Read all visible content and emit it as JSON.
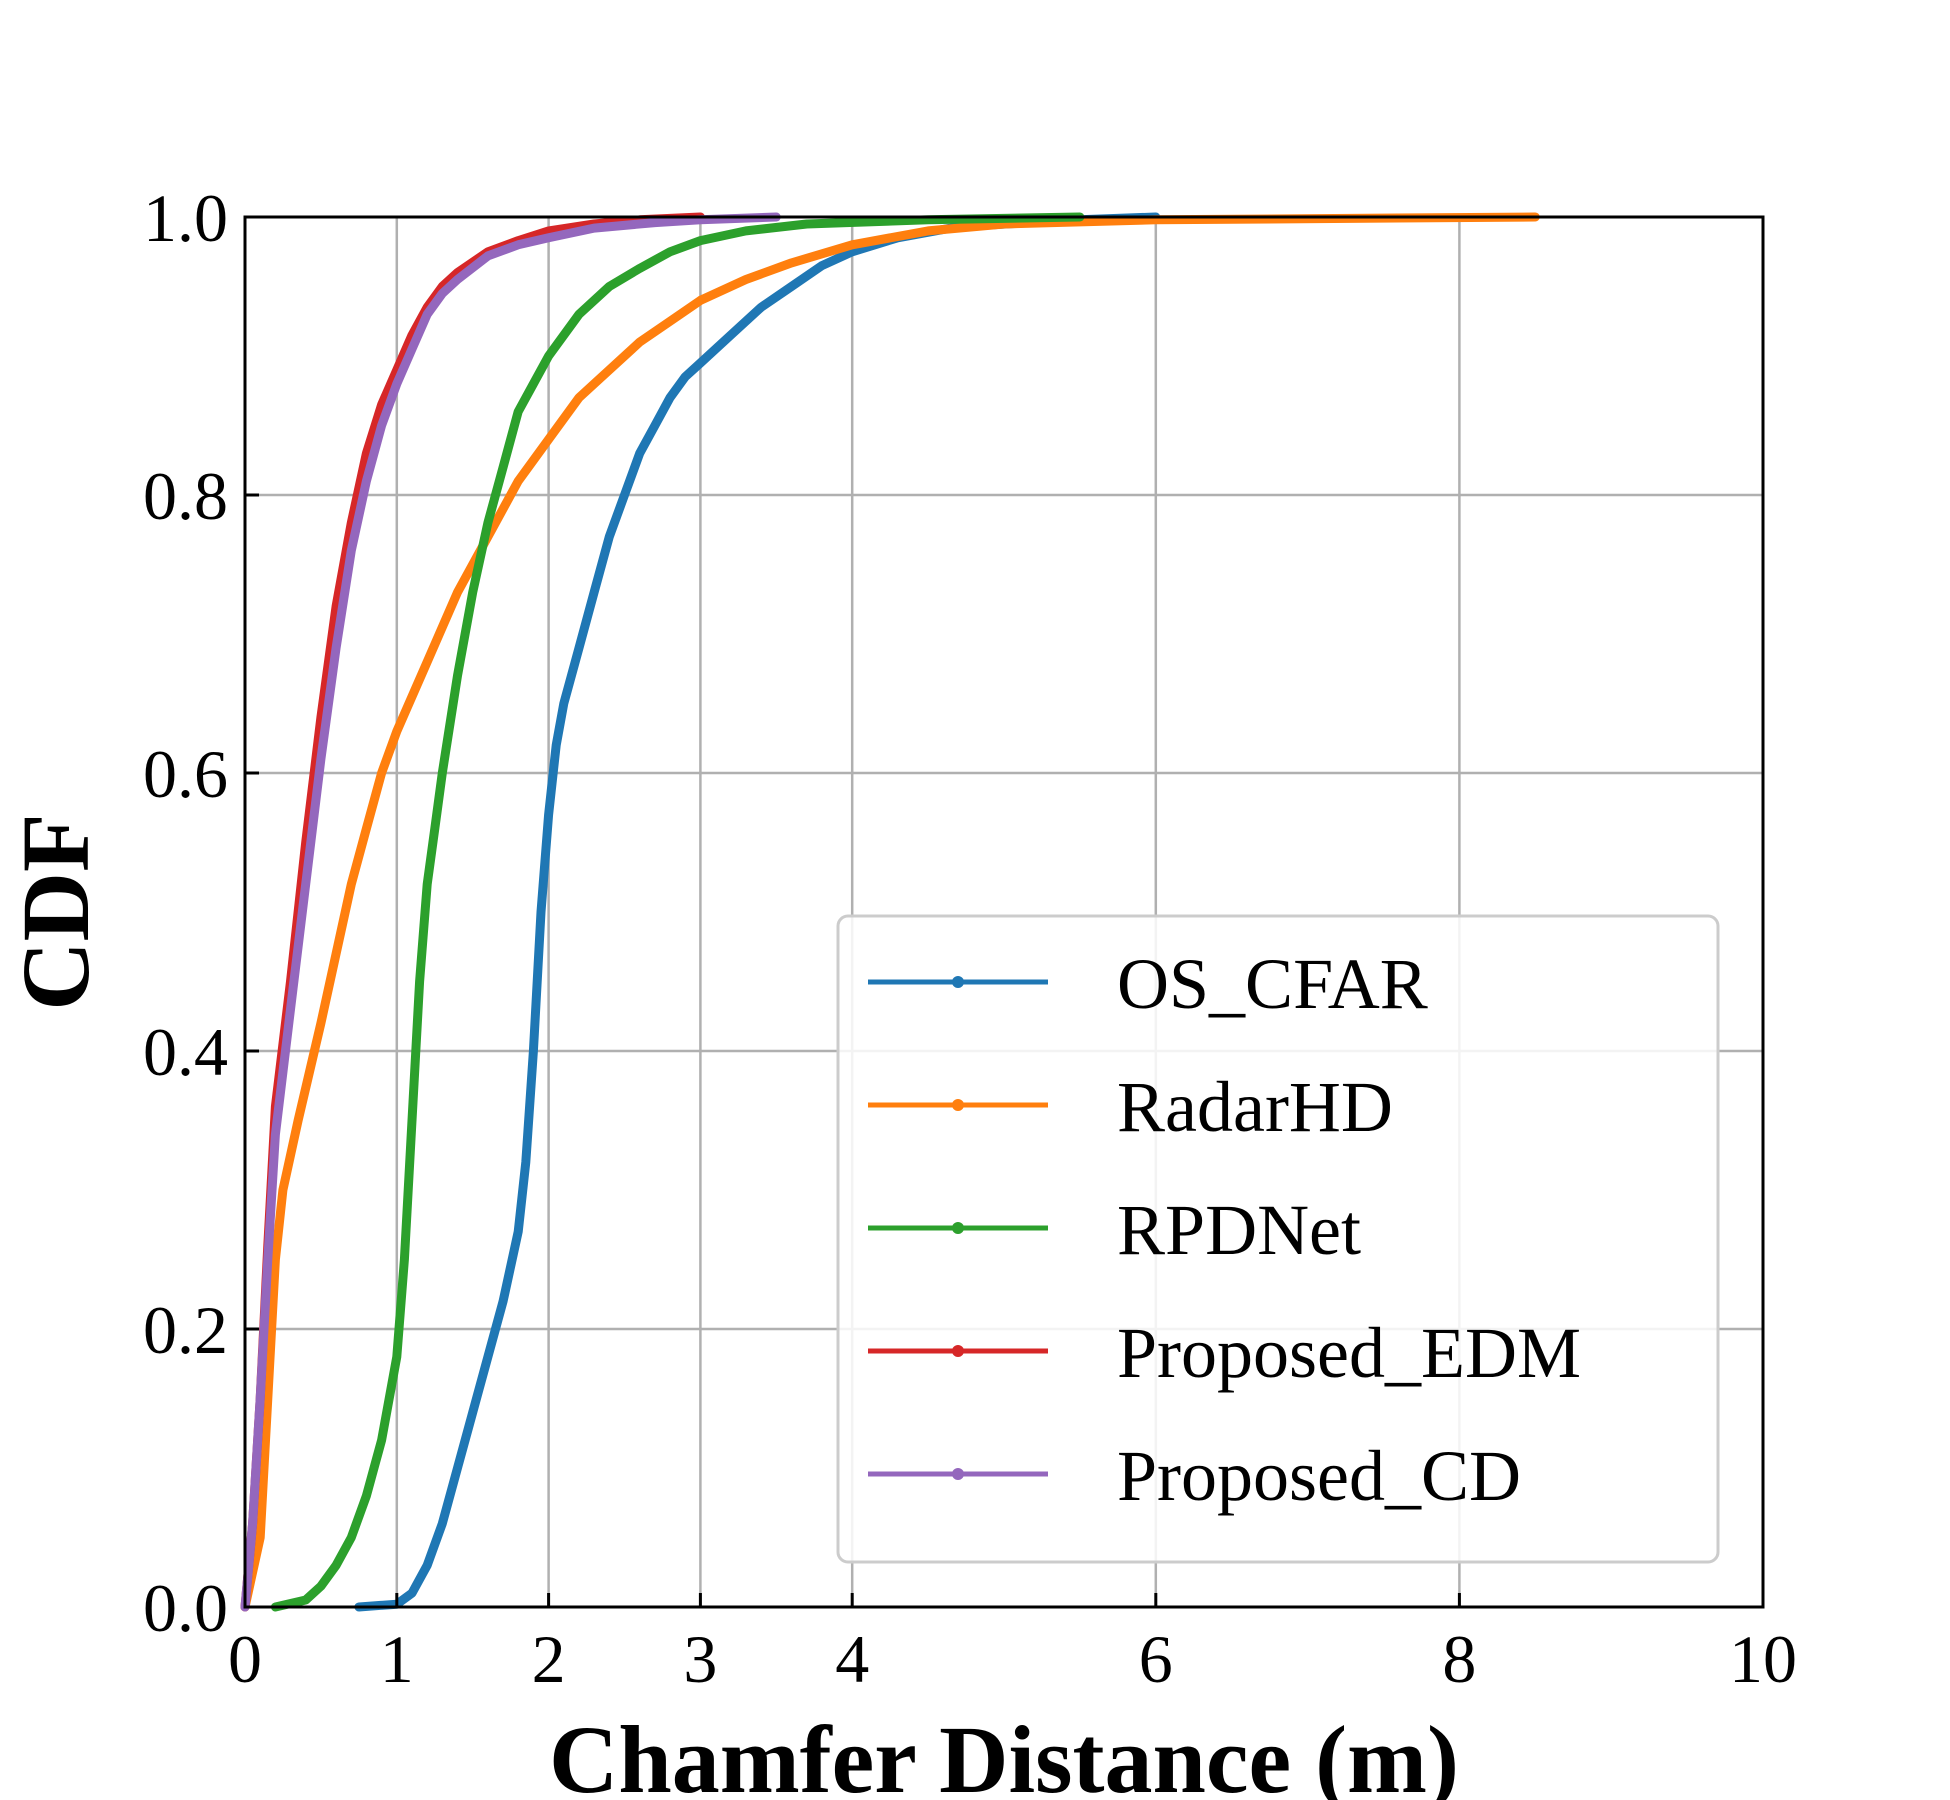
{
  "chart_data": {
    "type": "line",
    "title": "",
    "xlabel": "Chamfer Distance (m)",
    "ylabel": "CDF",
    "xlim": [
      0,
      10
    ],
    "ylim": [
      0,
      1
    ],
    "grid": true,
    "legend_position": "bottom-right",
    "x_ticks": [
      0,
      1,
      2,
      3,
      4,
      6,
      8,
      10
    ],
    "x_tick_labels": [
      "0",
      "1",
      "2",
      "3",
      "4",
      "6",
      "8",
      "10"
    ],
    "y_ticks": [
      0,
      0.2,
      0.4,
      0.6,
      0.8,
      1.0
    ],
    "y_tick_labels": [
      "0.0",
      "0.2",
      "0.4",
      "0.6",
      "0.8",
      "1.0"
    ],
    "series": [
      {
        "name": "OS_CFAR",
        "color": "#1f77b4",
        "points": [
          [
            0.75,
            0
          ],
          [
            1.0,
            0.002
          ],
          [
            1.1,
            0.01
          ],
          [
            1.2,
            0.03
          ],
          [
            1.3,
            0.06
          ],
          [
            1.4,
            0.1
          ],
          [
            1.5,
            0.14
          ],
          [
            1.6,
            0.18
          ],
          [
            1.7,
            0.22
          ],
          [
            1.8,
            0.27
          ],
          [
            1.85,
            0.32
          ],
          [
            1.9,
            0.4
          ],
          [
            1.95,
            0.5
          ],
          [
            2.0,
            0.57
          ],
          [
            2.05,
            0.62
          ],
          [
            2.1,
            0.65
          ],
          [
            2.2,
            0.69
          ],
          [
            2.3,
            0.73
          ],
          [
            2.4,
            0.77
          ],
          [
            2.5,
            0.8
          ],
          [
            2.6,
            0.83
          ],
          [
            2.7,
            0.85
          ],
          [
            2.8,
            0.87
          ],
          [
            2.9,
            0.885
          ],
          [
            3.0,
            0.895
          ],
          [
            3.2,
            0.915
          ],
          [
            3.4,
            0.935
          ],
          [
            3.6,
            0.95
          ],
          [
            3.8,
            0.965
          ],
          [
            4.0,
            0.975
          ],
          [
            4.3,
            0.985
          ],
          [
            4.7,
            0.993
          ],
          [
            5.5,
            0.998
          ],
          [
            6.0,
            1.0
          ]
        ]
      },
      {
        "name": "RadarHD",
        "color": "#ff7f0e",
        "points": [
          [
            0.0,
            0
          ],
          [
            0.1,
            0.05
          ],
          [
            0.15,
            0.15
          ],
          [
            0.2,
            0.25
          ],
          [
            0.25,
            0.3
          ],
          [
            0.35,
            0.35
          ],
          [
            0.5,
            0.42
          ],
          [
            0.6,
            0.47
          ],
          [
            0.7,
            0.52
          ],
          [
            0.8,
            0.56
          ],
          [
            0.9,
            0.6
          ],
          [
            1.0,
            0.63
          ],
          [
            1.2,
            0.68
          ],
          [
            1.4,
            0.73
          ],
          [
            1.6,
            0.77
          ],
          [
            1.8,
            0.81
          ],
          [
            2.0,
            0.84
          ],
          [
            2.2,
            0.87
          ],
          [
            2.4,
            0.89
          ],
          [
            2.6,
            0.91
          ],
          [
            2.8,
            0.925
          ],
          [
            3.0,
            0.94
          ],
          [
            3.3,
            0.955
          ],
          [
            3.6,
            0.967
          ],
          [
            4.0,
            0.98
          ],
          [
            4.5,
            0.99
          ],
          [
            5.0,
            0.995
          ],
          [
            6.0,
            0.998
          ],
          [
            8.5,
            1.0
          ]
        ]
      },
      {
        "name": "RPDNet",
        "color": "#2ca02c",
        "points": [
          [
            0.2,
            0
          ],
          [
            0.4,
            0.005
          ],
          [
            0.5,
            0.015
          ],
          [
            0.6,
            0.03
          ],
          [
            0.7,
            0.05
          ],
          [
            0.8,
            0.08
          ],
          [
            0.9,
            0.12
          ],
          [
            1.0,
            0.18
          ],
          [
            1.05,
            0.25
          ],
          [
            1.1,
            0.35
          ],
          [
            1.15,
            0.45
          ],
          [
            1.2,
            0.52
          ],
          [
            1.25,
            0.56
          ],
          [
            1.3,
            0.6
          ],
          [
            1.4,
            0.67
          ],
          [
            1.5,
            0.73
          ],
          [
            1.6,
            0.78
          ],
          [
            1.7,
            0.82
          ],
          [
            1.8,
            0.86
          ],
          [
            1.9,
            0.88
          ],
          [
            2.0,
            0.9
          ],
          [
            2.2,
            0.93
          ],
          [
            2.4,
            0.95
          ],
          [
            2.6,
            0.963
          ],
          [
            2.8,
            0.975
          ],
          [
            3.0,
            0.983
          ],
          [
            3.3,
            0.99
          ],
          [
            3.7,
            0.995
          ],
          [
            4.5,
            0.998
          ],
          [
            5.5,
            1.0
          ]
        ]
      },
      {
        "name": "Proposed_EDM",
        "color": "#d62728",
        "points": [
          [
            0.0,
            0
          ],
          [
            0.05,
            0.06
          ],
          [
            0.1,
            0.15
          ],
          [
            0.15,
            0.26
          ],
          [
            0.2,
            0.36
          ],
          [
            0.3,
            0.45
          ],
          [
            0.4,
            0.55
          ],
          [
            0.5,
            0.64
          ],
          [
            0.6,
            0.72
          ],
          [
            0.7,
            0.78
          ],
          [
            0.8,
            0.83
          ],
          [
            0.9,
            0.865
          ],
          [
            1.0,
            0.89
          ],
          [
            1.1,
            0.915
          ],
          [
            1.2,
            0.935
          ],
          [
            1.3,
            0.95
          ],
          [
            1.4,
            0.96
          ],
          [
            1.6,
            0.975
          ],
          [
            1.8,
            0.983
          ],
          [
            2.0,
            0.99
          ],
          [
            2.3,
            0.995
          ],
          [
            2.6,
            0.998
          ],
          [
            3.0,
            1.0
          ]
        ]
      },
      {
        "name": "Proposed_CD",
        "color": "#9467bd",
        "points": [
          [
            0.0,
            0
          ],
          [
            0.05,
            0.06
          ],
          [
            0.1,
            0.15
          ],
          [
            0.15,
            0.25
          ],
          [
            0.2,
            0.34
          ],
          [
            0.3,
            0.43
          ],
          [
            0.4,
            0.52
          ],
          [
            0.5,
            0.61
          ],
          [
            0.6,
            0.69
          ],
          [
            0.7,
            0.76
          ],
          [
            0.8,
            0.81
          ],
          [
            0.9,
            0.85
          ],
          [
            1.0,
            0.88
          ],
          [
            1.1,
            0.905
          ],
          [
            1.2,
            0.93
          ],
          [
            1.3,
            0.945
          ],
          [
            1.4,
            0.955
          ],
          [
            1.6,
            0.972
          ],
          [
            1.8,
            0.98
          ],
          [
            2.0,
            0.985
          ],
          [
            2.3,
            0.992
          ],
          [
            2.7,
            0.996
          ],
          [
            3.0,
            0.998
          ],
          [
            3.5,
            1.0
          ]
        ]
      }
    ]
  }
}
